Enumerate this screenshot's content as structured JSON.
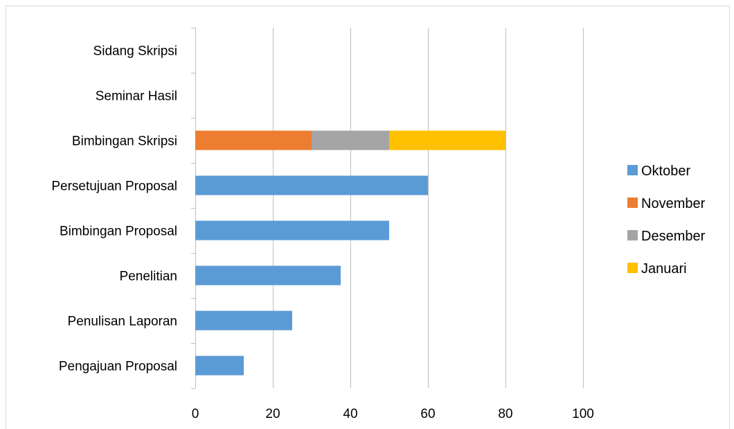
{
  "chart_data": {
    "type": "bar",
    "orientation": "horizontal",
    "stacked": true,
    "categories": [
      "Pengajuan Proposal",
      "Penulisan Laporan",
      "Penelitian",
      "Bimbingan Proposal",
      "Persetujuan Proposal",
      "Bimbingan Skripsi",
      "Seminar Hasil",
      "Sidang Skripsi"
    ],
    "series": [
      {
        "name": "Oktober",
        "color": "#5B9BD5",
        "values": [
          12.5,
          25,
          37.5,
          50,
          60,
          0,
          0,
          0
        ]
      },
      {
        "name": "November",
        "color": "#ED7D31",
        "values": [
          0,
          0,
          0,
          0,
          0,
          30,
          0,
          0
        ]
      },
      {
        "name": "Desember",
        "color": "#A5A5A5",
        "values": [
          0,
          0,
          0,
          0,
          0,
          20,
          0,
          0
        ]
      },
      {
        "name": "Januari",
        "color": "#FFC000",
        "values": [
          0,
          0,
          0,
          0,
          0,
          30,
          0,
          0
        ]
      }
    ],
    "xlim": [
      0,
      100
    ],
    "x_ticks": [
      "0",
      "20",
      "40",
      "60",
      "80",
      "100"
    ],
    "title": "",
    "xlabel": "",
    "ylabel": "",
    "grid": "vertical",
    "legend_position": "right"
  }
}
